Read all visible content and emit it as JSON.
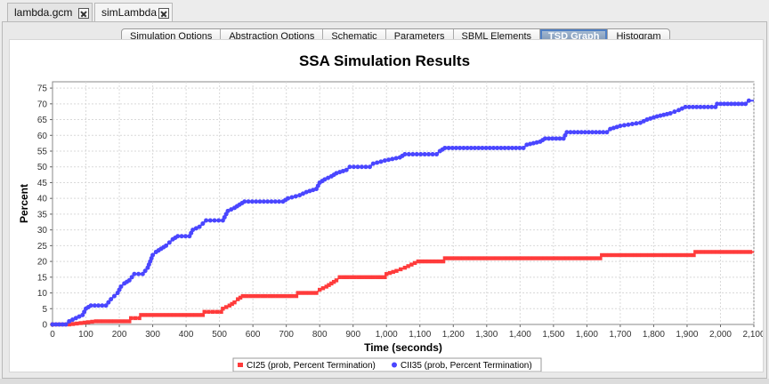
{
  "doc_tabs": [
    {
      "label": "lambda.gcm",
      "active": false
    },
    {
      "label": "simLambda",
      "active": true
    }
  ],
  "inner_tabs": [
    {
      "label": "Simulation Options",
      "active": false
    },
    {
      "label": "Abstraction Options",
      "active": false
    },
    {
      "label": "Schematic",
      "active": false
    },
    {
      "label": "Parameters",
      "active": false
    },
    {
      "label": "SBML Elements",
      "active": false
    },
    {
      "label": "TSD Graph",
      "active": true
    },
    {
      "label": "Histogram",
      "active": false
    }
  ],
  "colors": {
    "series_red": "#ff3b3b",
    "series_blue": "#4a46ff",
    "active_tab": "#6f89aa"
  },
  "chart_data": {
    "type": "line",
    "title": "SSA Simulation Results",
    "xlabel": "Time (seconds)",
    "ylabel": "Percent",
    "xlim": [
      0,
      2100
    ],
    "ylim": [
      0,
      77
    ],
    "xticks": [
      0,
      100,
      200,
      300,
      400,
      500,
      600,
      700,
      800,
      900,
      1000,
      1100,
      1200,
      1300,
      1400,
      1500,
      1600,
      1700,
      1800,
      1900,
      2000,
      2100
    ],
    "xtick_labels": [
      "0",
      "100",
      "200",
      "300",
      "400",
      "500",
      "600",
      "700",
      "800",
      "900",
      "1,000",
      "1,100",
      "1,200",
      "1,300",
      "1,400",
      "1,500",
      "1,600",
      "1,700",
      "1,800",
      "1,900",
      "2,000",
      "2,100"
    ],
    "yticks": [
      0,
      5,
      10,
      15,
      20,
      25,
      30,
      35,
      40,
      45,
      50,
      55,
      60,
      65,
      70,
      75
    ],
    "ytick_labels": [
      "0",
      "5",
      "10",
      "15",
      "20",
      "25",
      "30",
      "35",
      "40",
      "45",
      "50",
      "55",
      "60",
      "65",
      "70",
      "75"
    ],
    "grid": true,
    "legend_position": "bottom",
    "series": [
      {
        "name": "CI25 (prob, Percent Termination)",
        "color": "#ff3b3b",
        "marker": "square",
        "points": [
          [
            0,
            0
          ],
          [
            50,
            0
          ],
          [
            130,
            1
          ],
          [
            230,
            1
          ],
          [
            235,
            2
          ],
          [
            260,
            2
          ],
          [
            265,
            3
          ],
          [
            450,
            3
          ],
          [
            455,
            4
          ],
          [
            505,
            4
          ],
          [
            510,
            5
          ],
          [
            530,
            6
          ],
          [
            545,
            7
          ],
          [
            555,
            8
          ],
          [
            570,
            9
          ],
          [
            730,
            9
          ],
          [
            735,
            10
          ],
          [
            790,
            10
          ],
          [
            800,
            11
          ],
          [
            820,
            12
          ],
          [
            835,
            13
          ],
          [
            850,
            14
          ],
          [
            860,
            15
          ],
          [
            995,
            15
          ],
          [
            1000,
            16
          ],
          [
            1030,
            17
          ],
          [
            1055,
            18
          ],
          [
            1075,
            19
          ],
          [
            1095,
            20
          ],
          [
            1170,
            20
          ],
          [
            1175,
            21
          ],
          [
            1640,
            21
          ],
          [
            1645,
            22
          ],
          [
            1920,
            22
          ],
          [
            1925,
            23
          ],
          [
            2100,
            23
          ]
        ]
      },
      {
        "name": "CII35 (prob, Percent Termination)",
        "color": "#4a46ff",
        "marker": "circle",
        "points": [
          [
            0,
            0
          ],
          [
            40,
            0
          ],
          [
            50,
            1
          ],
          [
            70,
            2
          ],
          [
            90,
            3
          ],
          [
            100,
            5
          ],
          [
            115,
            6
          ],
          [
            160,
            6
          ],
          [
            175,
            8
          ],
          [
            185,
            9
          ],
          [
            195,
            10
          ],
          [
            205,
            12
          ],
          [
            215,
            13
          ],
          [
            230,
            14
          ],
          [
            245,
            16
          ],
          [
            270,
            16
          ],
          [
            285,
            18
          ],
          [
            300,
            22
          ],
          [
            310,
            23
          ],
          [
            325,
            24
          ],
          [
            340,
            25
          ],
          [
            360,
            27
          ],
          [
            375,
            28
          ],
          [
            410,
            28
          ],
          [
            420,
            30
          ],
          [
            440,
            31
          ],
          [
            460,
            33
          ],
          [
            510,
            33
          ],
          [
            525,
            36
          ],
          [
            545,
            37
          ],
          [
            560,
            38
          ],
          [
            575,
            39
          ],
          [
            690,
            39
          ],
          [
            705,
            40
          ],
          [
            740,
            41
          ],
          [
            760,
            42
          ],
          [
            790,
            43
          ],
          [
            800,
            45
          ],
          [
            815,
            46
          ],
          [
            835,
            47
          ],
          [
            850,
            48
          ],
          [
            880,
            49
          ],
          [
            890,
            50
          ],
          [
            950,
            50
          ],
          [
            960,
            51
          ],
          [
            995,
            52
          ],
          [
            1040,
            53
          ],
          [
            1055,
            54
          ],
          [
            1150,
            54
          ],
          [
            1160,
            55
          ],
          [
            1175,
            56
          ],
          [
            1410,
            56
          ],
          [
            1420,
            57
          ],
          [
            1460,
            58
          ],
          [
            1475,
            59
          ],
          [
            1530,
            59
          ],
          [
            1540,
            61
          ],
          [
            1660,
            61
          ],
          [
            1670,
            62
          ],
          [
            1700,
            63
          ],
          [
            1760,
            64
          ],
          [
            1780,
            65
          ],
          [
            1810,
            66
          ],
          [
            1850,
            67
          ],
          [
            1875,
            68
          ],
          [
            1895,
            69
          ],
          [
            1985,
            69
          ],
          [
            1990,
            70
          ],
          [
            2075,
            70
          ],
          [
            2085,
            71
          ],
          [
            2100,
            71
          ]
        ]
      }
    ]
  }
}
